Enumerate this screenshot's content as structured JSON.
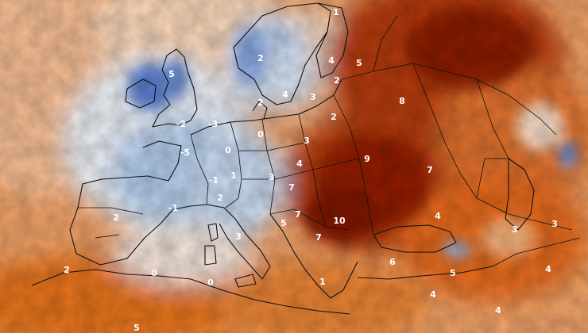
{
  "map": {
    "labels": [
      {
        "text": "1"
      },
      {
        "text": "2"
      },
      {
        "text": "4"
      },
      {
        "text": "5"
      },
      {
        "text": "2"
      },
      {
        "text": "4"
      },
      {
        "text": "3"
      },
      {
        "text": "2"
      },
      {
        "text": "8"
      },
      {
        "text": "5"
      },
      {
        "text": "-5"
      },
      {
        "text": "-2"
      },
      {
        "text": "0"
      },
      {
        "text": "0"
      },
      {
        "text": "-3"
      },
      {
        "text": "3"
      },
      {
        "text": "4"
      },
      {
        "text": "2"
      },
      {
        "text": "9"
      },
      {
        "text": "7"
      },
      {
        "text": "-1"
      },
      {
        "text": "1"
      },
      {
        "text": "3"
      },
      {
        "text": "7"
      },
      {
        "text": "2"
      },
      {
        "text": "-1"
      },
      {
        "text": "7"
      },
      {
        "text": "2"
      },
      {
        "text": "10"
      },
      {
        "text": "5"
      },
      {
        "text": "7"
      },
      {
        "text": "4"
      },
      {
        "text": "3"
      },
      {
        "text": "3"
      },
      {
        "text": "3"
      },
      {
        "text": "2"
      },
      {
        "text": "0"
      },
      {
        "text": "0"
      },
      {
        "text": "6"
      },
      {
        "text": "5"
      },
      {
        "text": "4"
      },
      {
        "text": "4"
      },
      {
        "text": "4"
      },
      {
        "text": "5"
      },
      {
        "text": "1"
      }
    ]
  }
}
